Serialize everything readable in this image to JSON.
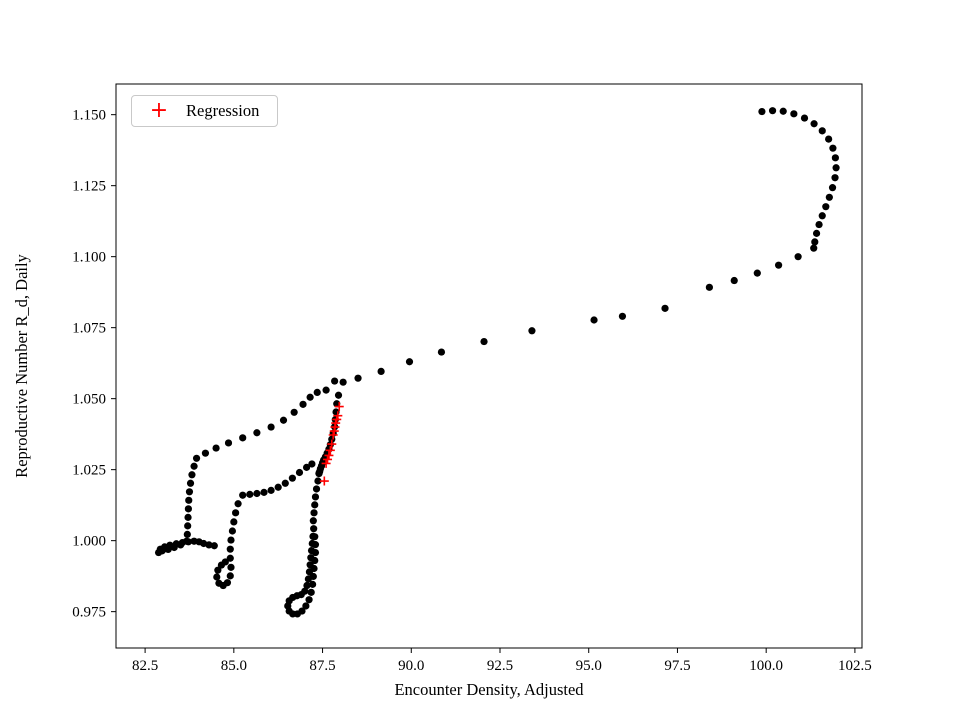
{
  "figure": {
    "background": "#ffffff"
  },
  "chart_data": {
    "type": "scatter",
    "title": "",
    "xlabel": "Encounter Density, Adjusted",
    "ylabel": "Reproductive Number R_d, Daily",
    "xlim": [
      81.68,
      102.7
    ],
    "ylim": [
      0.9622,
      1.1608
    ],
    "grid": false,
    "xticks": [
      82.5,
      85.0,
      87.5,
      90.0,
      92.5,
      95.0,
      97.5,
      100.0,
      102.5
    ],
    "xtick_labels": [
      "82.5",
      "85.0",
      "87.5",
      "90.0",
      "92.5",
      "95.0",
      "97.5",
      "100.0",
      "102.5"
    ],
    "yticks": [
      0.975,
      1.0,
      1.025,
      1.05,
      1.075,
      1.1,
      1.125,
      1.15
    ],
    "ytick_labels": [
      "0.975",
      "1.000",
      "1.025",
      "1.050",
      "1.075",
      "1.100",
      "1.125",
      "1.150"
    ],
    "legend": {
      "position": "upper left",
      "entries": [
        {
          "label": "Regression",
          "marker": "plus",
          "color": "#ff0000"
        }
      ]
    },
    "series": [
      {
        "name": "trajectory",
        "marker": "circle",
        "color": "#000000",
        "points": [
          [
            99.88,
            1.1511
          ],
          [
            100.18,
            1.1514
          ],
          [
            100.48,
            1.1512
          ],
          [
            100.78,
            1.1503
          ],
          [
            101.08,
            1.1488
          ],
          [
            101.35,
            1.1468
          ],
          [
            101.58,
            1.1443
          ],
          [
            101.76,
            1.1414
          ],
          [
            101.88,
            1.1382
          ],
          [
            101.95,
            1.1348
          ],
          [
            101.97,
            1.1313
          ],
          [
            101.94,
            1.1278
          ],
          [
            101.87,
            1.1243
          ],
          [
            101.78,
            1.1209
          ],
          [
            101.68,
            1.1176
          ],
          [
            101.58,
            1.1144
          ],
          [
            101.49,
            1.1113
          ],
          [
            101.42,
            1.1082
          ],
          [
            101.37,
            1.1052
          ],
          [
            101.34,
            1.103
          ],
          [
            100.9,
            1.1
          ],
          [
            100.35,
            1.097
          ],
          [
            99.75,
            1.0942
          ],
          [
            99.1,
            1.0916
          ],
          [
            98.4,
            1.0892
          ],
          [
            97.15,
            1.0818
          ],
          [
            95.95,
            1.079
          ],
          [
            95.15,
            1.0777
          ],
          [
            93.4,
            1.0739
          ],
          [
            92.05,
            1.0701
          ],
          [
            90.85,
            1.0664
          ],
          [
            89.95,
            1.063
          ],
          [
            89.15,
            1.0596
          ],
          [
            88.5,
            1.0572
          ],
          [
            88.08,
            1.0558
          ],
          [
            87.84,
            1.0562
          ],
          [
            87.95,
            1.0512
          ],
          [
            87.9,
            1.0482
          ],
          [
            87.88,
            1.0453
          ],
          [
            87.86,
            1.0426
          ],
          [
            87.84,
            1.0401
          ],
          [
            87.8,
            1.0378
          ],
          [
            87.76,
            1.0357
          ],
          [
            87.72,
            1.0338
          ],
          [
            87.68,
            1.0322
          ],
          [
            87.63,
            1.0308
          ],
          [
            87.58,
            1.0295
          ],
          [
            87.53,
            1.0284
          ],
          [
            87.5,
            1.0274
          ],
          [
            87.47,
            1.0263
          ],
          [
            87.44,
            1.0253
          ],
          [
            87.42,
            1.0244
          ],
          [
            87.4,
            1.0236
          ],
          [
            83.95,
            1.029
          ],
          [
            84.2,
            1.0308
          ],
          [
            84.5,
            1.0326
          ],
          [
            84.85,
            1.0344
          ],
          [
            85.25,
            1.0362
          ],
          [
            85.65,
            1.038
          ],
          [
            86.05,
            1.04
          ],
          [
            86.4,
            1.0424
          ],
          [
            86.7,
            1.0452
          ],
          [
            86.95,
            1.048
          ],
          [
            87.15,
            1.0505
          ],
          [
            87.35,
            1.0522
          ],
          [
            87.6,
            1.053
          ],
          [
            83.88,
            1.0262
          ],
          [
            83.82,
            1.0232
          ],
          [
            83.78,
            1.0202
          ],
          [
            83.75,
            1.0172
          ],
          [
            83.73,
            1.0142
          ],
          [
            83.72,
            1.0112
          ],
          [
            83.71,
            1.0082
          ],
          [
            83.7,
            1.0052
          ],
          [
            83.69,
            1.0022
          ],
          [
            83.67,
            0.9998
          ],
          [
            83.5,
            0.9985
          ],
          [
            83.32,
            0.9976
          ],
          [
            83.15,
            0.9969
          ],
          [
            82.98,
            0.9964
          ],
          [
            82.88,
            0.9958
          ],
          [
            82.93,
            0.997
          ],
          [
            83.05,
            0.9978
          ],
          [
            83.2,
            0.9984
          ],
          [
            83.38,
            0.9989
          ],
          [
            83.55,
            0.9993
          ],
          [
            83.72,
            0.9996
          ],
          [
            83.88,
            0.9998
          ],
          [
            84.02,
            0.9996
          ],
          [
            84.15,
            0.999
          ],
          [
            84.3,
            0.9985
          ],
          [
            84.45,
            0.9982
          ],
          [
            85.12,
            1.013
          ],
          [
            85.05,
            1.0098
          ],
          [
            85.0,
            1.0066
          ],
          [
            84.96,
            1.0034
          ],
          [
            84.92,
            1.0002
          ],
          [
            84.9,
            0.997
          ],
          [
            84.9,
            0.9938
          ],
          [
            84.92,
            0.9906
          ],
          [
            84.9,
            0.9876
          ],
          [
            84.82,
            0.9852
          ],
          [
            84.7,
            0.9842
          ],
          [
            84.58,
            0.985
          ],
          [
            84.52,
            0.9872
          ],
          [
            84.55,
            0.9896
          ],
          [
            84.65,
            0.9914
          ],
          [
            84.76,
            0.9925
          ],
          [
            85.25,
            1.016
          ],
          [
            85.45,
            1.0163
          ],
          [
            85.65,
            1.0166
          ],
          [
            85.85,
            1.017
          ],
          [
            86.05,
            1.0177
          ],
          [
            86.25,
            1.0188
          ],
          [
            86.45,
            1.0202
          ],
          [
            86.65,
            1.022
          ],
          [
            86.85,
            1.024
          ],
          [
            87.05,
            1.0258
          ],
          [
            87.2,
            1.027
          ],
          [
            87.4,
            1.0238
          ],
          [
            87.37,
            1.021
          ],
          [
            87.33,
            1.0182
          ],
          [
            87.3,
            1.0154
          ],
          [
            87.28,
            1.0126
          ],
          [
            87.26,
            1.0098
          ],
          [
            87.24,
            1.007
          ],
          [
            87.25,
            1.0042
          ],
          [
            87.28,
            1.0014
          ],
          [
            87.3,
            0.9986
          ],
          [
            87.3,
            0.9958
          ],
          [
            87.28,
            0.993
          ],
          [
            87.26,
            0.9902
          ],
          [
            87.24,
            0.9874
          ],
          [
            87.22,
            0.9846
          ],
          [
            87.18,
            0.9818
          ],
          [
            87.12,
            0.9792
          ],
          [
            87.03,
            0.977
          ],
          [
            86.92,
            0.9752
          ],
          [
            86.79,
            0.9742
          ],
          [
            86.66,
            0.9742
          ],
          [
            86.56,
            0.9752
          ],
          [
            86.52,
            0.977
          ],
          [
            86.56,
            0.9788
          ],
          [
            86.66,
            0.98
          ],
          [
            86.78,
            0.9806
          ],
          [
            86.9,
            0.981
          ],
          [
            87.0,
            0.9822
          ],
          [
            87.06,
            0.9842
          ],
          [
            87.1,
            0.9865
          ],
          [
            87.13,
            0.989
          ],
          [
            87.15,
            0.9915
          ],
          [
            87.17,
            0.994
          ],
          [
            87.19,
            0.9965
          ],
          [
            87.21,
            0.999
          ],
          [
            87.23,
            1.0015
          ]
        ]
      },
      {
        "name": "Regression",
        "marker": "plus",
        "color": "#ff0000",
        "points": [
          [
            87.97,
            1.0472
          ],
          [
            87.93,
            1.044
          ],
          [
            87.9,
            1.0427
          ],
          [
            87.87,
            1.0414
          ],
          [
            87.85,
            1.04
          ],
          [
            87.83,
            1.0386
          ],
          [
            87.8,
            1.0372
          ],
          [
            87.76,
            1.034
          ],
          [
            87.72,
            1.0318
          ],
          [
            87.68,
            1.03
          ],
          [
            87.64,
            1.0286
          ],
          [
            87.6,
            1.0272
          ],
          [
            87.55,
            1.021
          ]
        ]
      }
    ]
  }
}
